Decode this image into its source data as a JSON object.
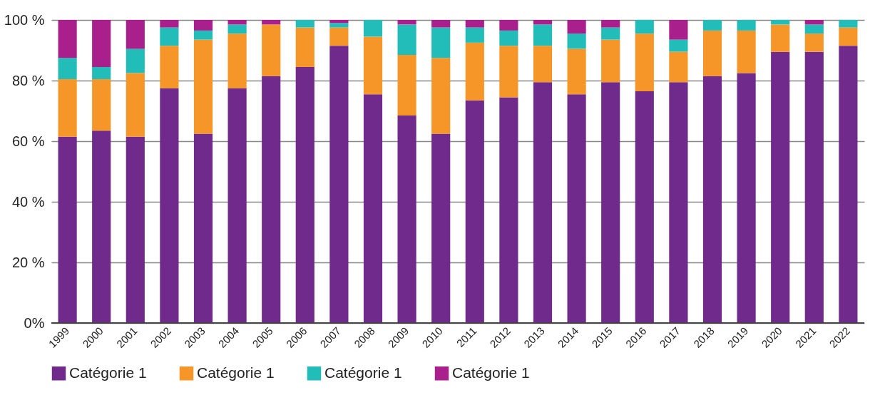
{
  "chart_data": {
    "type": "bar",
    "stacked": true,
    "legend": "bottom",
    "grid": "y",
    "categories": [
      "1999",
      "2000",
      "2001",
      "2002",
      "2003",
      "2004",
      "2005",
      "2006",
      "2007",
      "2008",
      "2009",
      "2010",
      "2011",
      "2012",
      "2013",
      "2014",
      "2015",
      "2016",
      "2017",
      "2018",
      "2019",
      "2020",
      "2021",
      "2022"
    ],
    "ylim": [
      0,
      100
    ],
    "yticks": [
      {
        "value": 0,
        "label": "0%"
      },
      {
        "value": 20,
        "label": "20 %"
      },
      {
        "value": 40,
        "label": "40 %"
      },
      {
        "value": 60,
        "label": "60 %"
      },
      {
        "value": 80,
        "label": "80 %"
      },
      {
        "value": 100,
        "label": "100 %"
      }
    ],
    "series": [
      {
        "name": "Catégorie 1",
        "color": "#6f2a8c",
        "values": [
          61.5,
          63.5,
          61.5,
          77.5,
          62.5,
          77.5,
          81.5,
          84.5,
          91.5,
          75.5,
          68.5,
          62.5,
          73.5,
          74.5,
          79.5,
          75.5,
          79.5,
          76.5,
          79.5,
          81.5,
          82.5,
          89.5,
          89.5,
          91.5
        ]
      },
      {
        "name": "Catégorie 1",
        "color": "#f79628",
        "values": [
          19,
          17,
          21,
          14,
          31,
          18,
          17,
          13,
          6,
          19,
          20,
          25,
          19,
          17,
          12,
          15,
          14,
          19,
          10,
          15,
          14,
          9,
          6,
          6
        ]
      },
      {
        "name": "Catégorie 1",
        "color": "#22bdb9",
        "values": [
          7,
          4,
          8,
          6,
          3,
          3,
          0,
          2.5,
          1.5,
          5.5,
          10,
          10,
          5,
          5,
          7,
          5,
          4,
          4.5,
          4,
          3.5,
          3.5,
          1.5,
          3,
          2.5
        ]
      },
      {
        "name": "Catégorie 1",
        "color": "#a91f8c",
        "values": [
          12.5,
          15.5,
          9.5,
          2.5,
          3.5,
          1.5,
          1.5,
          0,
          1,
          0,
          1.5,
          2.5,
          2.5,
          3.5,
          1.5,
          4.5,
          2.5,
          0,
          6.5,
          0,
          0,
          0,
          1.5,
          0
        ]
      }
    ]
  }
}
